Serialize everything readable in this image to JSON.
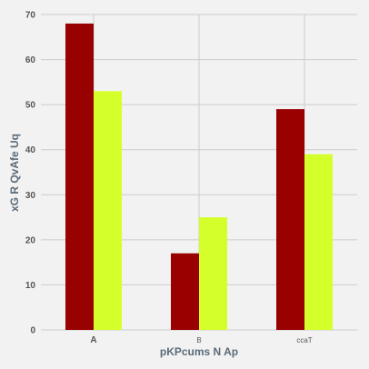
{
  "chart_data": {
    "type": "bar",
    "categories": [
      "A",
      "B",
      "ccaT"
    ],
    "series": [
      {
        "values": [
          68,
          17,
          49
        ]
      },
      {
        "values": [
          53,
          25,
          39
        ]
      }
    ],
    "title": "",
    "xlabel": "pKPcums N Ap",
    "ylabel": "xG R QvAfe Uq",
    "ylim": [
      0,
      70
    ],
    "yticks": [
      0,
      10,
      20,
      30,
      40,
      50,
      60,
      70
    ],
    "grid": true,
    "legend": "none",
    "colors": {
      "series": [
        "#990000",
        "#d4ff2a"
      ],
      "background": "#f2f2f2",
      "grid": "#cccccc"
    }
  }
}
